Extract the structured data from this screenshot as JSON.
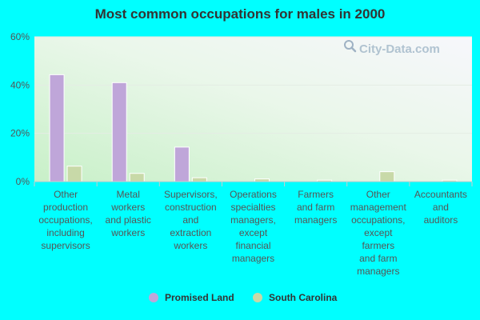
{
  "chart_data": {
    "type": "bar",
    "title": "Most common occupations for males in 2000",
    "xlabel": "",
    "ylabel": "",
    "ylim": [
      0,
      60
    ],
    "yticks": [
      0,
      20,
      40,
      60
    ],
    "ytick_suffix": "%",
    "grid": true,
    "legend_position": "bottom",
    "categories": [
      [
        "Other",
        "production",
        "occupations,",
        "including",
        "supervisors"
      ],
      [
        "Metal",
        "workers",
        "and plastic",
        "workers"
      ],
      [
        "Supervisors,",
        "construction",
        "and",
        "extraction",
        "workers"
      ],
      [
        "Operations",
        "specialties",
        "managers,",
        "except",
        "financial",
        "managers"
      ],
      [
        "Farmers",
        "and farm",
        "managers"
      ],
      [
        "Other",
        "management",
        "occupations,",
        "except",
        "farmers",
        "and farm",
        "managers"
      ],
      [
        "Accountants",
        "and",
        "auditors"
      ]
    ],
    "series": [
      {
        "name": "Promised Land",
        "color": "#bfa6d9",
        "values": [
          44.3,
          41.0,
          14.3,
          0,
          0,
          0,
          0
        ]
      },
      {
        "name": "South Carolina",
        "color": "#c8d9a8",
        "values": [
          6.4,
          3.4,
          1.6,
          1.1,
          0.6,
          4.1,
          0.6
        ]
      }
    ],
    "watermark": "City-Data.com"
  }
}
